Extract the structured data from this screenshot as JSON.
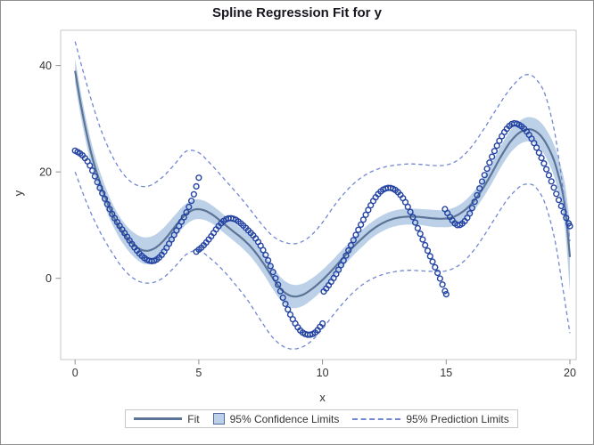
{
  "title": "Spline Regression Fit for y",
  "axes": {
    "x": {
      "label": "x",
      "ticks": [
        0,
        5,
        10,
        15,
        20
      ]
    },
    "y": {
      "label": "y",
      "ticks": [
        0,
        20,
        40
      ]
    }
  },
  "legend": {
    "items": [
      {
        "type": "line",
        "label": "Fit"
      },
      {
        "type": "band",
        "label": "95% Confidence Limits"
      },
      {
        "type": "dash",
        "label": "95% Prediction Limits"
      }
    ]
  },
  "colors": {
    "marker": "#2343a2",
    "fit_line": "#5c7495",
    "confidence_band": "#bcd1e8",
    "prediction_line": "#7286d2",
    "plot_frame": "#c9c9c9",
    "tick": "#8f8f8f",
    "text": "#333333",
    "title_text": "#17171f"
  },
  "chart_data": {
    "type": "scatter",
    "title": "Spline Regression Fit for y",
    "xlabel": "x",
    "ylabel": "y",
    "xlim": [
      -0.6,
      20.3
    ],
    "ylim": [
      -15.4,
      46.6
    ],
    "x_ticks": [
      0,
      5,
      10,
      15,
      20
    ],
    "y_ticks": [
      0,
      20,
      40
    ],
    "grid": false,
    "legend_position": "bottom-center",
    "scatter": {
      "marker": "open-circle",
      "x_step": 0.1,
      "segments": [
        {
          "x": [
            0,
            0.3,
            0.6,
            1,
            1.5,
            2,
            2.5,
            2.9,
            3.2,
            3.5,
            3.8,
            4.1,
            4.5,
            4.8,
            5
          ],
          "y": [
            24,
            23.1,
            21.2,
            17,
            12.1,
            8.5,
            5.2,
            3.5,
            3.3,
            4.4,
            6.5,
            9,
            12.4,
            15.8,
            18.9
          ]
        },
        {
          "x": [
            4.9,
            5.2,
            5.5,
            5.8,
            6.1,
            6.4,
            6.7,
            7,
            7.3,
            7.6,
            7.9,
            8.2,
            8.5,
            8.8,
            9.1,
            9.4,
            9.7,
            10
          ],
          "y": [
            5,
            6.2,
            7.9,
            9.8,
            11.1,
            11.2,
            10.3,
            9,
            7.5,
            5.3,
            2.3,
            -1.2,
            -4.8,
            -7.7,
            -9.8,
            -10.6,
            -10.2,
            -8.5
          ]
        },
        {
          "x": [
            10.05,
            10.3,
            10.6,
            10.9,
            11.2,
            11.5,
            11.8,
            12.1,
            12.4,
            12.7,
            13,
            13.3,
            13.6,
            13.9,
            14.2,
            14.5,
            14.8,
            15
          ],
          "y": [
            -2.5,
            -1,
            1.2,
            3.8,
            6.7,
            9.6,
            12.4,
            14.9,
            16.5,
            17,
            16.4,
            14.7,
            12,
            8.9,
            5.7,
            2.6,
            -0.6,
            -3
          ]
        },
        {
          "x": [
            14.95,
            15.2,
            15.45,
            15.7,
            15.95,
            16.2,
            16.5,
            16.8,
            17.1,
            17.4,
            17.7,
            18,
            18.3,
            18.6,
            18.9,
            19.2,
            19.5,
            19.8,
            20
          ],
          "y": [
            13,
            11.2,
            10,
            10.5,
            12.2,
            15,
            18.8,
            22.3,
            25.4,
            27.8,
            29.1,
            28.7,
            27.3,
            25,
            22.1,
            18.8,
            15.3,
            11.9,
            9.8
          ]
        }
      ]
    },
    "fit": {
      "x": [
        0,
        0.2,
        0.5,
        0.8,
        1.2,
        1.6,
        2,
        2.4,
        2.8,
        3.2,
        3.6,
        4,
        4.4,
        4.8,
        5.2,
        5.6,
        6,
        6.4,
        6.8,
        7.2,
        7.6,
        8,
        8.4,
        8.8,
        9.2,
        9.6,
        10,
        10.4,
        10.8,
        11.2,
        11.6,
        12,
        12.4,
        12.8,
        13.2,
        13.6,
        14,
        14.4,
        14.8,
        15.2,
        15.6,
        16,
        16.4,
        16.8,
        17.2,
        17.6,
        18,
        18.4,
        18.8,
        19.2,
        19.5,
        19.8,
        20
      ],
      "y": [
        39,
        33.5,
        26.5,
        21,
        15.5,
        11.2,
        8.2,
        6.2,
        5.2,
        5.6,
        7.2,
        9.5,
        11.7,
        12.9,
        12.8,
        11.8,
        10.3,
        8.8,
        7.3,
        5.4,
        2.9,
        0,
        -2.4,
        -3.4,
        -3.1,
        -1.9,
        -0.3,
        1.6,
        3.7,
        5.7,
        7.5,
        9.1,
        10.3,
        11.1,
        11.5,
        11.6,
        11.5,
        11.3,
        11.2,
        11.4,
        12.3,
        13.9,
        16.3,
        19.4,
        22.8,
        25.7,
        27.5,
        28,
        26.9,
        23.9,
        20,
        13.5,
        4
      ],
      "ci_half_width": [
        2.3,
        2.3,
        2.2,
        2.1,
        2,
        2,
        2.1,
        2.3,
        2.5,
        2.5,
        2.4,
        2.2,
        2,
        1.9,
        1.8,
        1.7,
        1.7,
        1.7,
        1.8,
        1.9,
        2,
        2.1,
        2.2,
        2.2,
        2.1,
        2,
        1.9,
        1.8,
        1.7,
        1.6,
        1.6,
        1.5,
        1.5,
        1.5,
        1.5,
        1.5,
        1.5,
        1.6,
        1.6,
        1.7,
        1.7,
        1.8,
        1.8,
        1.9,
        2,
        2.1,
        2.2,
        2.3,
        2.5,
        2.8,
        3.2,
        4.2,
        6.5
      ]
    },
    "prediction_upper": {
      "x": [
        0,
        0.5,
        1,
        1.5,
        2,
        2.5,
        3,
        3.5,
        4,
        4.5,
        5,
        5.5,
        6,
        6.5,
        7,
        7.5,
        8,
        8.5,
        9,
        9.5,
        10,
        10.5,
        11,
        11.5,
        12,
        12.5,
        13,
        13.5,
        14,
        14.5,
        15,
        15.5,
        16,
        16.5,
        17,
        17.5,
        18,
        18.3,
        18.6,
        19,
        19.4,
        19.7,
        20
      ],
      "y": [
        44.5,
        36,
        28.5,
        23,
        19.3,
        17.5,
        17.4,
        18.9,
        21.3,
        23.9,
        23.6,
        21.4,
        18.8,
        16.2,
        13.4,
        10.4,
        7.9,
        6.7,
        6.6,
        7.9,
        10.5,
        13.8,
        16.6,
        18.7,
        20.1,
        20.9,
        21.3,
        21.5,
        21.4,
        21.2,
        21.3,
        22.3,
        24.6,
        27.9,
        31.6,
        35.1,
        37.7,
        38.3,
        37.6,
        34.5,
        27,
        17.5,
        7
      ]
    },
    "prediction_lower": {
      "x": [
        0,
        0.5,
        1,
        1.5,
        2,
        2.5,
        3,
        3.5,
        4,
        4.5,
        5,
        5.5,
        6,
        6.5,
        7,
        7.5,
        8,
        8.5,
        9,
        9.5,
        10,
        10.5,
        11,
        11.5,
        12,
        12.5,
        13,
        13.5,
        14,
        14.5,
        15,
        15.5,
        16,
        16.5,
        17,
        17.5,
        18,
        18.3,
        18.6,
        19,
        19.4,
        19.7,
        20
      ],
      "y": [
        20,
        13.8,
        8.8,
        4.8,
        1.5,
        -0.4,
        -0.9,
        -0.1,
        2,
        4.5,
        5.2,
        3.6,
        1.4,
        -1.3,
        -4.3,
        -7.9,
        -11.2,
        -13,
        -13.2,
        -12,
        -9.5,
        -6.5,
        -3.8,
        -1.6,
        -0.1,
        0.8,
        1.3,
        1.5,
        1.4,
        1.3,
        1.4,
        2.4,
        4.6,
        7.8,
        11.5,
        15,
        17.3,
        17.7,
        17.2,
        14,
        7,
        -1.5,
        -10.3
      ]
    }
  }
}
